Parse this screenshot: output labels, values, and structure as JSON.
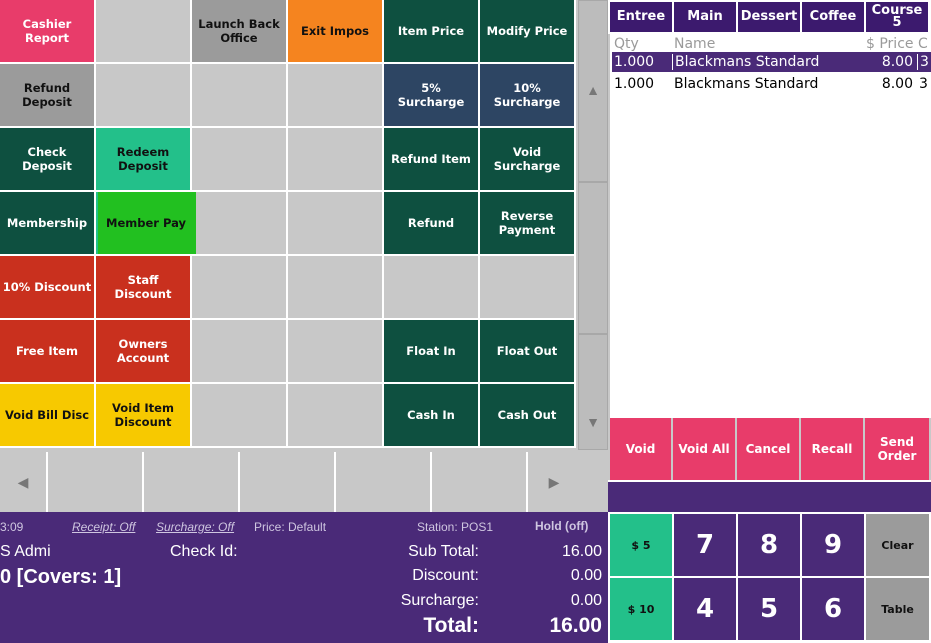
{
  "function_grid": [
    {
      "id": "cashier-report-button",
      "label": "Cashier\nReport",
      "color": "pink"
    },
    {
      "id": "empty-cell",
      "label": "",
      "color": "empty"
    },
    {
      "id": "launch-back-office-button",
      "label": "Launch Back\nOffice",
      "color": "gray"
    },
    {
      "id": "exit-impos-button",
      "label": "Exit Impos",
      "color": "orange"
    },
    {
      "id": "item-price-button",
      "label": "Item Price",
      "color": "dgreen"
    },
    {
      "id": "modify-price-button",
      "label": "Modify Price",
      "color": "dgreen"
    },
    {
      "id": "refund-deposit-button",
      "label": "Refund\nDeposit",
      "color": "gray"
    },
    {
      "id": "empty-cell",
      "label": "",
      "color": "empty"
    },
    {
      "id": "empty-cell",
      "label": "",
      "color": "empty"
    },
    {
      "id": "empty-cell",
      "label": "",
      "color": "empty"
    },
    {
      "id": "surcharge-5-button",
      "label": "5%\nSurcharge",
      "color": "navy"
    },
    {
      "id": "surcharge-10-button",
      "label": "10%\nSurcharge",
      "color": "navy"
    },
    {
      "id": "check-deposit-button",
      "label": "Check\nDeposit",
      "color": "dgreen"
    },
    {
      "id": "redeem-deposit-button",
      "label": "Redeem\nDeposit",
      "color": "teal"
    },
    {
      "id": "empty-cell",
      "label": "",
      "color": "empty"
    },
    {
      "id": "empty-cell",
      "label": "",
      "color": "empty"
    },
    {
      "id": "refund-item-button",
      "label": "Refund Item",
      "color": "dgreen"
    },
    {
      "id": "void-surcharge-button",
      "label": "Void\nSurcharge",
      "color": "dgreen"
    },
    {
      "id": "membership-button",
      "label": "Membership",
      "color": "dgreen"
    },
    {
      "id": "member-pay-button",
      "label": "Member Pay",
      "color": "teal"
    },
    {
      "id": "empty-cell",
      "label": "",
      "color": "empty"
    },
    {
      "id": "empty-cell",
      "label": "",
      "color": "empty"
    },
    {
      "id": "refund-button",
      "label": "Refund",
      "color": "dgreen"
    },
    {
      "id": "reverse-payment-button",
      "label": "Reverse\nPayment",
      "color": "dgreen"
    },
    {
      "id": "discount-10-button",
      "label": "10% Discount",
      "color": "red"
    },
    {
      "id": "staff-discount-button",
      "label": "Staff\nDiscount",
      "color": "red"
    },
    {
      "id": "empty-cell",
      "label": "",
      "color": "empty"
    },
    {
      "id": "empty-cell",
      "label": "",
      "color": "empty"
    },
    {
      "id": "empty-cell",
      "label": "",
      "color": "empty"
    },
    {
      "id": "empty-cell",
      "label": "",
      "color": "empty"
    },
    {
      "id": "free-item-button",
      "label": "Free Item",
      "color": "red"
    },
    {
      "id": "owners-account-button",
      "label": "Owners\nAccount",
      "color": "red"
    },
    {
      "id": "empty-cell",
      "label": "",
      "color": "empty"
    },
    {
      "id": "empty-cell",
      "label": "",
      "color": "empty"
    },
    {
      "id": "float-in-button",
      "label": "Float In",
      "color": "dgreen"
    },
    {
      "id": "float-out-button",
      "label": "Float Out",
      "color": "dgreen"
    },
    {
      "id": "void-bill-disc-button",
      "label": "Void Bill Disc",
      "color": "yellow"
    },
    {
      "id": "void-item-discount-button",
      "label": "Void Item\nDiscount",
      "color": "yellow"
    },
    {
      "id": "empty-cell",
      "label": "",
      "color": "empty"
    },
    {
      "id": "empty-cell",
      "label": "",
      "color": "empty"
    },
    {
      "id": "cash-in-button",
      "label": "Cash In",
      "color": "dgreen"
    },
    {
      "id": "cash-out-button",
      "label": "Cash Out",
      "color": "dgreen"
    }
  ],
  "highlight_color": "#22c020",
  "icons": {
    "scroll_up": "up-triangle-icon",
    "scroll_down": "down-triangle-icon",
    "page_left": "left-triangle-icon",
    "page_right": "right-triangle-icon"
  },
  "info": {
    "time": "3:09",
    "receipt": "Receipt: Off",
    "surcharge": "Surcharge: Off",
    "price": "Price: Default",
    "station": "Station: POS1",
    "hold": "Hold (off)",
    "user": "S Admi",
    "check_id_label": "Check Id:",
    "covers": "0 [Covers:  1]",
    "subtotal_label": "Sub Total:",
    "subtotal_value": "16.00",
    "discount_label": "Discount:",
    "discount_value": "0.00",
    "surcharge_label": "Surcharge:",
    "surcharge_value": "0.00",
    "total_label": "Total:",
    "total_value": "16.00"
  },
  "categories": [
    "Entree",
    "Main",
    "Dessert",
    "Coffee",
    "Course\n5"
  ],
  "order": {
    "headers": {
      "qty": "Qty",
      "name": "Name",
      "price": "$ Price",
      "c": "C"
    },
    "items": [
      {
        "qty": "1.000",
        "name": "Blackmans Standard",
        "price": "8.00",
        "c": "3",
        "selected": true
      },
      {
        "qty": "1.000",
        "name": "Blackmans Standard",
        "price": "8.00",
        "c": "3",
        "selected": false
      }
    ]
  },
  "actions": [
    "Void",
    "Void All",
    "Cancel",
    "Recall",
    "Send\nOrder"
  ],
  "keypad": {
    "cash5": "$ 5",
    "cash10": "$ 10",
    "n7": "7",
    "n8": "8",
    "n9": "9",
    "n4": "4",
    "n5": "5",
    "n6": "6",
    "clear": "Clear",
    "table": "Table"
  }
}
